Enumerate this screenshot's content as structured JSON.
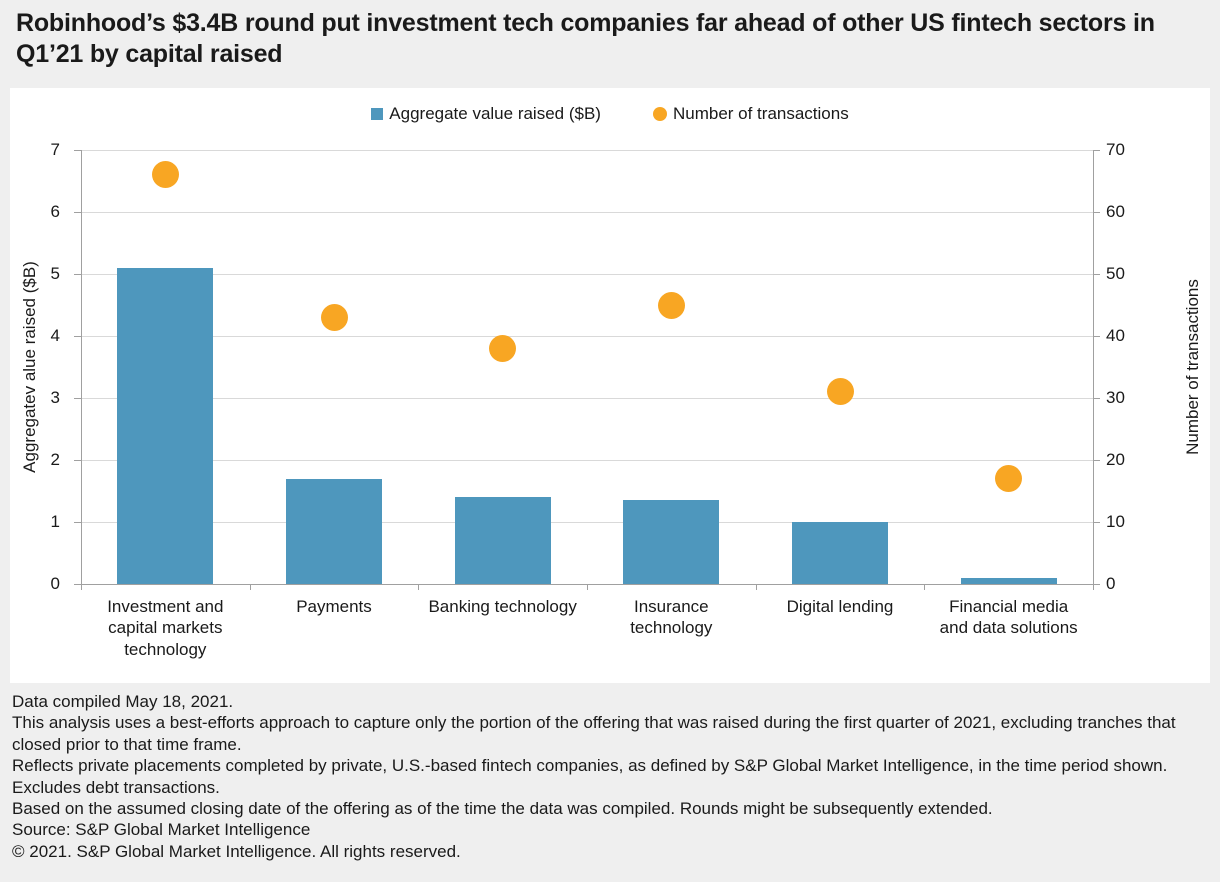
{
  "title": "Robinhood’s $3.4B round put investment tech companies far ahead of other US fintech sectors in Q1’21 by capital raised",
  "legend": [
    {
      "label": "Aggregate value raised ($B)",
      "marker": "square",
      "color": "#4E97BD"
    },
    {
      "label": "Number of transactions",
      "marker": "circle",
      "color": "#F8A623"
    }
  ],
  "chart_data": {
    "type": "bar",
    "subtype": "combo-bar-and-scatter-dual-axis",
    "categories": [
      "Investment and capital markets technology",
      "Payments",
      "Banking technology",
      "Insurance technology",
      "Digital lending",
      "Financial media and data solutions"
    ],
    "category_display": [
      "Investment and\ncapital markets\ntechnology",
      "Payments",
      "Banking technology",
      "Insurance\ntechnology",
      "Digital lending",
      "Financial media\nand data solutions"
    ],
    "series": [
      {
        "name": "Aggregate value raised ($B)",
        "type": "bar",
        "axis": "left",
        "color": "#4E97BD",
        "values": [
          5.1,
          1.7,
          1.4,
          1.35,
          1.0,
          0.1
        ]
      },
      {
        "name": "Number of transactions",
        "type": "scatter",
        "axis": "right",
        "color": "#F8A623",
        "values": [
          66,
          43,
          38,
          45,
          31,
          17
        ]
      }
    ],
    "left_axis": {
      "label": "Aggregatev alue raised ($B)",
      "min": 0,
      "max": 7,
      "tick_step": 1,
      "ticks": [
        0,
        1,
        2,
        3,
        4,
        5,
        6,
        7
      ]
    },
    "right_axis": {
      "label": "Number of transactions",
      "min": 0,
      "max": 70,
      "tick_step": 10,
      "ticks": [
        0,
        10,
        20,
        30,
        40,
        50,
        60,
        70
      ]
    },
    "grid": "horizontal",
    "legend_position": "top-center"
  },
  "footnotes": [
    "Data compiled May 18, 2021.",
    "This analysis uses a best-efforts approach to capture only the portion of the offering that was raised during the first quarter of 2021, excluding tranches that closed prior to that time frame.",
    "Reflects private placements completed by private, U.S.-based fintech companies, as defined by S&P Global Market Intelligence, in the time period shown. Excludes debt transactions.",
    "Based on the assumed closing date of the offering as of the time the data was compiled. Rounds might be subsequently extended.",
    "Source: S&P Global Market Intelligence",
    "© 2021. S&P Global Market Intelligence. All rights reserved."
  ],
  "colors": {
    "bar_blue": "#4E97BD",
    "dot_orange": "#F8A623",
    "page_background": "#EFEFEF",
    "panel_background": "#FFFFFF",
    "gridline": "#D9D9D9",
    "axis_line": "#A0A0A0",
    "text": "#1A1A1A"
  }
}
